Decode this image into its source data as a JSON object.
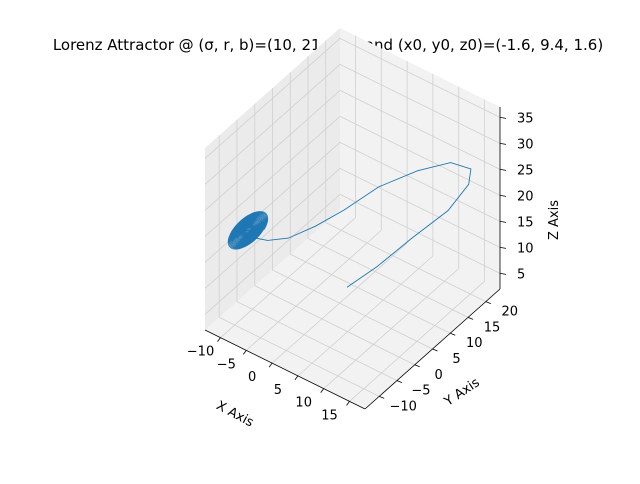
{
  "chart_data": {
    "type": "line",
    "projection": "3d",
    "title": "Lorenz Attractor @ (σ, r, b)=(10, 21, 8/3) and (x0, y0, z0)=(-1.6, 9.4, 1.6)",
    "xlabel": "X Axis",
    "ylabel": "Y Axis",
    "zlabel": "Z Axis",
    "xlim": [
      -13,
      18
    ],
    "ylim": [
      -14,
      24
    ],
    "zlim": [
      2,
      37
    ],
    "xticks": [
      -10,
      -5,
      0,
      5,
      10,
      15
    ],
    "yticks": [
      -10,
      -5,
      0,
      5,
      10,
      15,
      20
    ],
    "zticks": [
      5,
      10,
      15,
      20,
      25,
      30,
      35
    ],
    "grid": true,
    "legend": "none",
    "line_color": "#1f77b4",
    "series": [
      {
        "points": [
          [
            -1.6,
            9.4,
            1.6
          ],
          [
            1.0,
            14.0,
            4.0
          ],
          [
            5.0,
            18.0,
            9.0
          ],
          [
            10.0,
            21.0,
            15.0
          ],
          [
            14.0,
            21.0,
            22.0
          ],
          [
            16.5,
            18.0,
            28.0
          ],
          [
            16.0,
            13.0,
            32.0
          ],
          [
            13.0,
            8.0,
            32.0
          ],
          [
            9.0,
            3.0,
            30.0
          ],
          [
            5.0,
            -1.0,
            26.0
          ],
          [
            1.5,
            -4.0,
            23.0
          ],
          [
            -2.0,
            -6.5,
            20.5
          ],
          [
            -5.0,
            -8.0,
            19.5
          ],
          [
            -7.5,
            -9.0,
            19.5
          ],
          [
            -9.0,
            -9.0,
            20.0
          ]
        ],
        "spiral": {
          "center": [
            -8.5,
            -8.5,
            20.0
          ],
          "turns": 22,
          "radius_start": 3.2,
          "radius_end": 0.4,
          "z_amplitude": 2.5
        }
      }
    ]
  },
  "colors": {
    "background": "#ffffff",
    "pane": "#f2f2f2",
    "pane_side": "#ebebeb",
    "grid": "#d0d0d0",
    "line": "#1f77b4"
  }
}
